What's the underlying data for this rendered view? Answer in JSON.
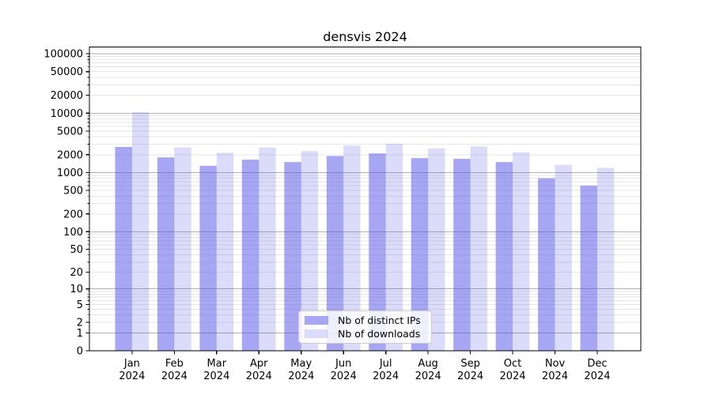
{
  "chart_data": {
    "type": "bar",
    "title": "densvis 2024",
    "categories": [
      "Jan 2024",
      "Feb 2024",
      "Mar 2024",
      "Apr 2024",
      "May 2024",
      "Jun 2024",
      "Jul 2024",
      "Aug 2024",
      "Sep 2024",
      "Oct 2024",
      "Nov 2024",
      "Dec 2024"
    ],
    "series": [
      {
        "name": "Nb of distinct IPs",
        "values": [
          2700,
          1800,
          1300,
          1650,
          1500,
          1900,
          2100,
          1750,
          1700,
          1500,
          800,
          600
        ]
      },
      {
        "name": "Nb of downloads",
        "values": [
          10400,
          2650,
          2150,
          2650,
          2300,
          2850,
          3050,
          2550,
          2750,
          2200,
          1350,
          1200
        ]
      }
    ],
    "yscale": "log1p",
    "ylim": [
      0,
      130000
    ],
    "yticks": [
      100000,
      50000,
      20000,
      10000,
      5000,
      2000,
      1000,
      500,
      200,
      100,
      50,
      20,
      10,
      5,
      2,
      1,
      0
    ],
    "xlabel": "",
    "ylabel": "",
    "grid": true,
    "legend_position": "lower center"
  },
  "colors": {
    "ips_bar": "rgba(77,77,229,0.5)",
    "downloads_bar": "rgba(77,77,229,0.2)",
    "ips_swatch": "#a6a6f2",
    "downloads_swatch": "#dbdbfa",
    "grid_major": "#b0b0b0",
    "grid_minor": "#e6e6e6",
    "axis": "#000000",
    "text": "#000000"
  }
}
